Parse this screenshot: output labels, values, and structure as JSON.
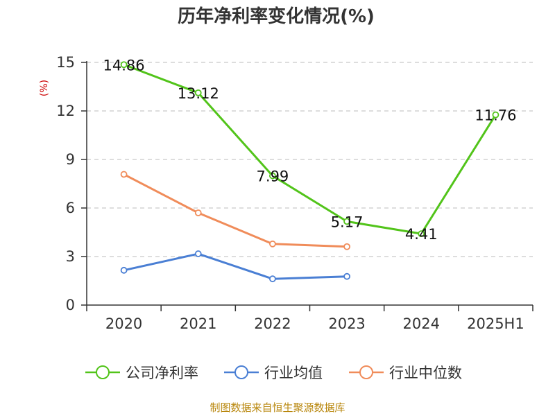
{
  "chart_data": {
    "type": "line",
    "title": "历年净利率变化情况(%)",
    "ylabel": "(%)",
    "categories": [
      "2020",
      "2021",
      "2022",
      "2023",
      "2024",
      "2025H1"
    ],
    "ylim": [
      0,
      15
    ],
    "yticks": [
      0,
      3,
      6,
      9,
      12,
      15
    ],
    "grid": true,
    "legend_position": "bottom",
    "series": [
      {
        "name": "公司净利率",
        "color": "#52c41a",
        "values": [
          14.86,
          13.12,
          7.99,
          5.17,
          4.41,
          11.76
        ],
        "labels": [
          "14.86",
          "13.12",
          "7.99",
          "5.17",
          "4.41",
          "11.76"
        ]
      },
      {
        "name": "行业均值",
        "color": "#4a7fd4",
        "values": [
          2.15,
          3.17,
          1.62,
          1.77,
          null,
          null
        ]
      },
      {
        "name": "行业中位数",
        "color": "#f08c5a",
        "values": [
          8.08,
          5.7,
          3.78,
          3.61,
          null,
          null
        ]
      }
    ],
    "source": "制图数据来自恒生聚源数据库"
  }
}
